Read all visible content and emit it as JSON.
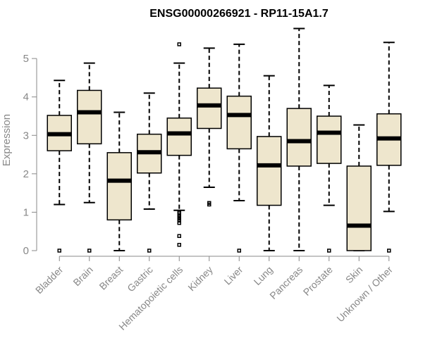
{
  "chart_data": {
    "type": "boxplot",
    "title": "ENSG00000266921 - RP11-15A1.7",
    "xlabel": "",
    "ylabel": "Expression",
    "ylim": [
      0,
      5.9
    ],
    "yticks": [
      0,
      1,
      2,
      3,
      4,
      5
    ],
    "box_fill": "#EEE6CD",
    "axis_color": "#888888",
    "categories": [
      "Bladder",
      "Brain",
      "Breast",
      "Gastric",
      "Hematopoietic cells",
      "Kidney",
      "Liver",
      "Lung",
      "Pancreas",
      "Prostate",
      "Skin",
      "Unknown / Other"
    ],
    "boxes": [
      {
        "low": 1.2,
        "q1": 2.6,
        "median": 3.03,
        "q3": 3.52,
        "high": 4.43,
        "outliers": [
          0
        ]
      },
      {
        "low": 1.25,
        "q1": 2.78,
        "median": 3.6,
        "q3": 4.17,
        "high": 4.88,
        "outliers": [
          0
        ]
      },
      {
        "low": 0,
        "q1": 0.8,
        "median": 1.82,
        "q3": 2.55,
        "high": 3.6,
        "outliers": []
      },
      {
        "low": 1.08,
        "q1": 2.02,
        "median": 2.56,
        "q3": 3.03,
        "high": 4.1,
        "outliers": [
          0
        ]
      },
      {
        "low": 1.05,
        "q1": 2.48,
        "median": 3.05,
        "q3": 3.45,
        "high": 4.88,
        "outliers": [
          5.37,
          1.0,
          0.97,
          0.92,
          0.88,
          0.83,
          0.78,
          0.72,
          0.38,
          0.15
        ]
      },
      {
        "low": 1.65,
        "q1": 3.18,
        "median": 3.78,
        "q3": 4.23,
        "high": 5.27,
        "outliers": [
          1.24,
          1.2
        ]
      },
      {
        "low": 1.3,
        "q1": 2.65,
        "median": 3.53,
        "q3": 4.02,
        "high": 5.37,
        "outliers": [
          0
        ]
      },
      {
        "low": 0,
        "q1": 1.18,
        "median": 2.22,
        "q3": 2.97,
        "high": 4.55,
        "outliers": []
      },
      {
        "low": 0,
        "q1": 2.2,
        "median": 2.85,
        "q3": 3.7,
        "high": 5.78,
        "outliers": []
      },
      {
        "low": 1.18,
        "q1": 2.27,
        "median": 3.07,
        "q3": 3.5,
        "high": 4.3,
        "outliers": [
          0
        ]
      },
      {
        "low": 0,
        "q1": 0,
        "median": 0.65,
        "q3": 2.2,
        "high": 3.27,
        "outliers": []
      },
      {
        "low": 1.02,
        "q1": 2.22,
        "median": 2.92,
        "q3": 3.56,
        "high": 5.42,
        "outliers": [
          0
        ]
      }
    ]
  }
}
